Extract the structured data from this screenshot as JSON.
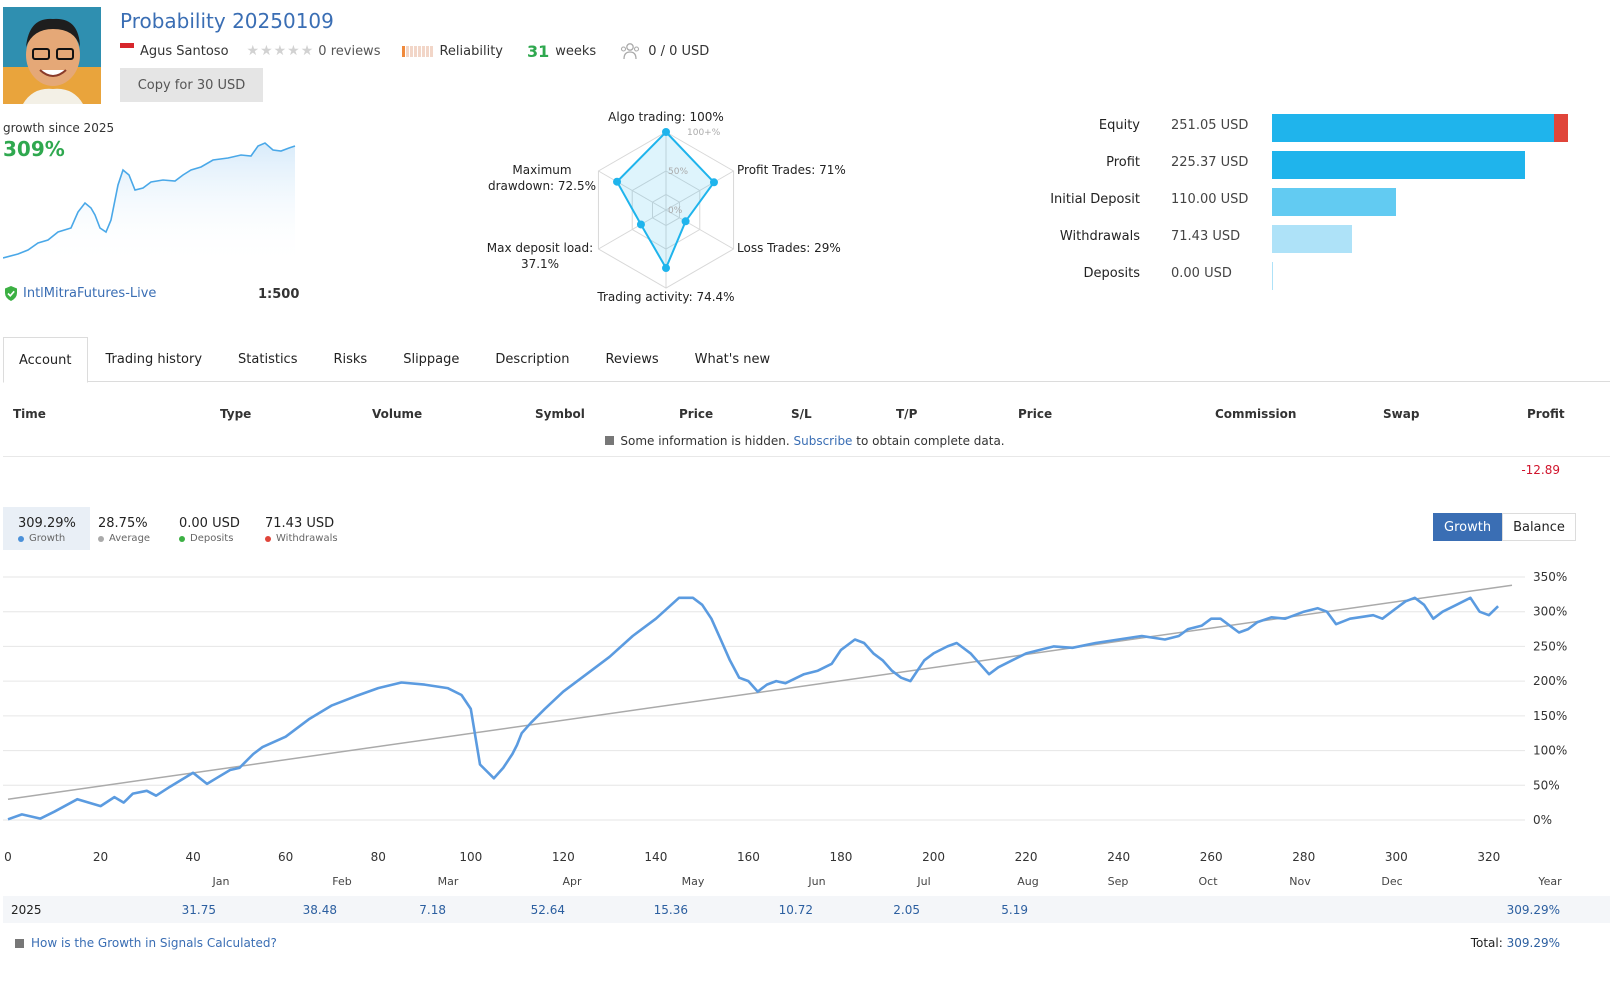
{
  "header": {
    "title": "Probability 20250109",
    "author": "Agus Santoso",
    "reviews": "0 reviews",
    "reliability_label": "Reliability",
    "weeks_num": "31",
    "weeks_label": "weeks",
    "subscribers": "0 / 0 USD",
    "copy_button": "Copy for 30 USD",
    "stars": "★★★★★"
  },
  "growth_panel": {
    "label": "growth since 2025",
    "value": "309%",
    "broker": "IntlMitraFutures-Live",
    "leverage": "1:500"
  },
  "radar": {
    "labels": {
      "algo": "Algo trading: 100%",
      "profit": "Profit Trades: 71%",
      "loss": "Loss Trades: 29%",
      "activity": "Trading activity: 74.4%",
      "load_1": "Max deposit load:",
      "load_2": "37.1%",
      "dd_1": "Maximum",
      "dd_2": "drawdown: 72.5%"
    },
    "ring_labels": [
      "100+%",
      "50%",
      "0%"
    ],
    "values": [
      100,
      71,
      29,
      74.4,
      37.1,
      72.5
    ]
  },
  "equity": {
    "rows": [
      {
        "name": "Equity",
        "value": "251.05 USD",
        "amount": 251.05,
        "color": "#1fb4ec"
      },
      {
        "name": "Profit",
        "value": "225.37 USD",
        "amount": 225.37,
        "color": "#1fb4ec"
      },
      {
        "name": "Initial Deposit",
        "value": "110.00 USD",
        "amount": 110.0,
        "color": "#62cbf2"
      },
      {
        "name": "Withdrawals",
        "value": "71.43 USD",
        "amount": 71.43,
        "color": "#aee2f8"
      },
      {
        "name": "Deposits",
        "value": "0.00 USD",
        "amount": 0,
        "color": "#aee2f8"
      }
    ]
  },
  "tabs": [
    "Account",
    "Trading history",
    "Statistics",
    "Risks",
    "Slippage",
    "Description",
    "Reviews",
    "What's new"
  ],
  "trades": {
    "headers": [
      "Time",
      "Type",
      "Volume",
      "Symbol",
      "Price",
      "S/L",
      "T/P",
      "Price",
      "Commission",
      "Swap",
      "Profit"
    ],
    "hidden_note_pre": "Some information is hidden.",
    "hidden_note_link": "Subscribe",
    "hidden_note_post": "to obtain complete data.",
    "profit": "-12.89"
  },
  "summary": [
    {
      "value": "309.29%",
      "label": "Growth",
      "color": "#4a90d9"
    },
    {
      "value": "28.75%",
      "label": "Average",
      "color": "#aaaaaa"
    },
    {
      "value": "0.00 USD",
      "label": "Deposits",
      "color": "#3cb043"
    },
    {
      "value": "71.43 USD",
      "label": "Withdrawals",
      "color": "#e0453a"
    }
  ],
  "toggle": {
    "growth": "Growth",
    "balance": "Balance"
  },
  "chart_data": {
    "type": "line",
    "x_ticks": [
      0,
      20,
      40,
      60,
      80,
      100,
      120,
      140,
      160,
      180,
      200,
      220,
      240,
      260,
      280,
      300,
      320
    ],
    "y_ticks": [
      "350%",
      "300%",
      "250%",
      "200%",
      "150%",
      "100%",
      "50%",
      "0%"
    ],
    "ylim": [
      0,
      350
    ],
    "xlim": [
      0,
      325
    ],
    "series": [
      {
        "color": "#5b9be0",
        "x": [
          0,
          3,
          7,
          10,
          15,
          20,
          23,
          25,
          27,
          30,
          32,
          35,
          40,
          43,
          45,
          48,
          50,
          53,
          55,
          60,
          65,
          70,
          75,
          80,
          85,
          90,
          95,
          98,
          100,
          102,
          105,
          107,
          109,
          110,
          111,
          113,
          116,
          120,
          125,
          130,
          135,
          140,
          145,
          148,
          150,
          152,
          154,
          156,
          158,
          160,
          162,
          164,
          166,
          168,
          172,
          175,
          178,
          180,
          183,
          185,
          187,
          189,
          191,
          193,
          195,
          198,
          200,
          203,
          205,
          208,
          210,
          212,
          214,
          217,
          220,
          223,
          226,
          230,
          235,
          240,
          245,
          248,
          250,
          253,
          255,
          258,
          260,
          262,
          264,
          266,
          268,
          270,
          273,
          276,
          280,
          283,
          285,
          287,
          290,
          292,
          295,
          297,
          300,
          302,
          304,
          306,
          308,
          310,
          313,
          316,
          318,
          320,
          322
        ],
        "y": [
          1,
          8,
          2,
          12,
          30,
          20,
          33,
          25,
          38,
          42,
          35,
          48,
          68,
          52,
          60,
          72,
          75,
          95,
          105,
          120,
          145,
          165,
          178,
          190,
          198,
          195,
          190,
          180,
          160,
          80,
          60,
          75,
          95,
          108,
          125,
          140,
          160,
          185,
          210,
          235,
          265,
          290,
          320,
          320,
          310,
          290,
          260,
          230,
          205,
          200,
          185,
          195,
          200,
          197,
          210,
          215,
          225,
          245,
          260,
          255,
          240,
          230,
          215,
          205,
          200,
          230,
          240,
          250,
          255,
          240,
          225,
          210,
          220,
          230,
          240,
          245,
          250,
          248,
          255,
          260,
          265,
          262,
          260,
          265,
          275,
          280,
          290,
          290,
          280,
          270,
          275,
          285,
          292,
          290,
          300,
          305,
          300,
          282,
          290,
          292,
          295,
          290,
          305,
          315,
          320,
          310,
          290,
          300,
          310,
          320,
          300,
          295,
          308
        ]
      },
      {
        "color": "#aaaaaa",
        "x": [
          0,
          325
        ],
        "y": [
          30,
          338
        ]
      }
    ],
    "month_labels": [
      "Jan",
      "Feb",
      "Mar",
      "Apr",
      "May",
      "Jun",
      "Jul",
      "Aug",
      "Sep",
      "Oct",
      "Nov",
      "Dec",
      "Year"
    ]
  },
  "year_row": {
    "year": "2025",
    "values": [
      "31.75",
      "38.48",
      "7.18",
      "52.64",
      "15.36",
      "10.72",
      "2.05",
      "5.19",
      "",
      "",
      "",
      "",
      "309.29%"
    ]
  },
  "footer": {
    "link": "How is the Growth in Signals Calculated?",
    "total_label": "Total:",
    "total_value": "309.29%"
  }
}
